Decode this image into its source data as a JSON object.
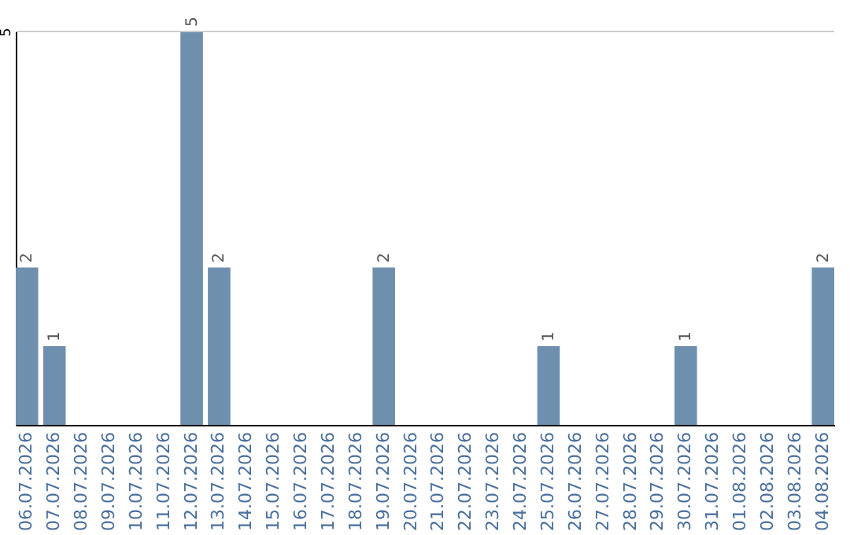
{
  "chart_data": {
    "type": "bar",
    "categories": [
      "06.07.2026",
      "07.07.2026",
      "08.07.2026",
      "09.07.2026",
      "10.07.2026",
      "11.07.2026",
      "12.07.2026",
      "13.07.2026",
      "14.07.2026",
      "15.07.2026",
      "16.07.2026",
      "17.07.2026",
      "18.07.2026",
      "19.07.2026",
      "20.07.2026",
      "21.07.2026",
      "22.07.2026",
      "23.07.2026",
      "24.07.2026",
      "25.07.2026",
      "26.07.2026",
      "27.07.2026",
      "28.07.2026",
      "29.07.2026",
      "30.07.2026",
      "31.07.2026",
      "01.08.2026",
      "02.08.2026",
      "03.08.2026",
      "04.08.2026"
    ],
    "values": [
      2,
      1,
      0,
      0,
      0,
      0,
      5,
      2,
      0,
      0,
      0,
      0,
      0,
      2,
      0,
      0,
      0,
      0,
      0,
      1,
      0,
      0,
      0,
      0,
      1,
      0,
      0,
      0,
      0,
      2
    ],
    "value_labels": [
      "2",
      "1",
      null,
      null,
      null,
      null,
      "5",
      "2",
      null,
      null,
      null,
      null,
      null,
      "2",
      null,
      null,
      null,
      null,
      null,
      "1",
      null,
      null,
      null,
      null,
      "1",
      null,
      null,
      null,
      null,
      "2"
    ],
    "color": "#6e8fae",
    "ylim": [
      0,
      5
    ],
    "yticks": [
      5
    ],
    "ref_lines": [
      {
        "axis": "y",
        "value": 5,
        "color": "#cccccc"
      }
    ]
  }
}
